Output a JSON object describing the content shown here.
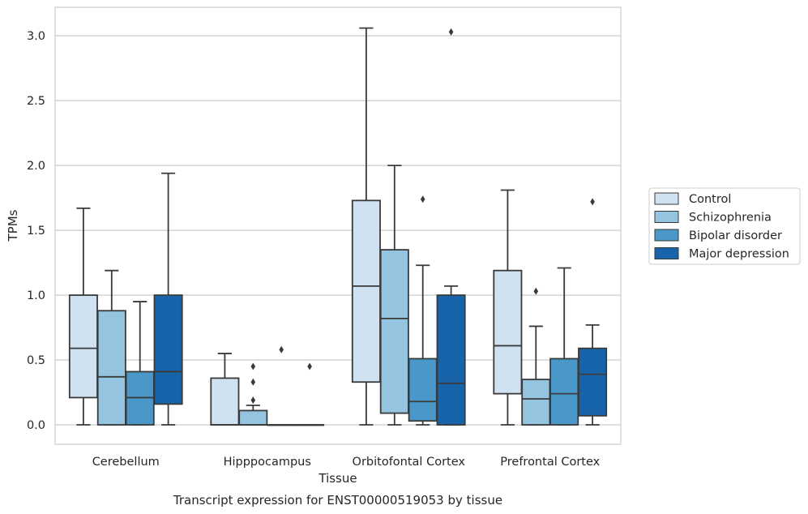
{
  "chart_data": {
    "type": "box",
    "title": "",
    "xlabel": "Tissue",
    "ylabel": "TPMs",
    "caption": "Transcript expression for ENST00000519053 by tissue",
    "ylim": [
      -0.15,
      3.22
    ],
    "yticks": [
      0.0,
      0.5,
      1.0,
      1.5,
      2.0,
      2.5,
      3.0
    ],
    "ytick_labels": [
      "0.0",
      "0.5",
      "1.0",
      "1.5",
      "2.0",
      "2.5",
      "3.0"
    ],
    "grid": "horizontal",
    "legend_position": "right",
    "categories": [
      "Cerebellum",
      "Hipppocampus",
      "Orbitofontal Cortex",
      "Prefrontal Cortex"
    ],
    "series": [
      {
        "name": "Control",
        "color": "#d0e1f2",
        "boxes": [
          {
            "min": 0.0,
            "q1": 0.21,
            "median": 0.59,
            "q3": 1.0,
            "max": 1.67,
            "outliers": []
          },
          {
            "min": 0.0,
            "q1": 0.0,
            "median": 0.0,
            "q3": 0.36,
            "max": 0.55,
            "outliers": []
          },
          {
            "min": 0.0,
            "q1": 0.33,
            "median": 1.07,
            "q3": 1.73,
            "max": 3.06,
            "outliers": []
          },
          {
            "min": 0.0,
            "q1": 0.24,
            "median": 0.61,
            "q3": 1.19,
            "max": 1.81,
            "outliers": []
          }
        ]
      },
      {
        "name": "Schizophrenia",
        "color": "#94c4df",
        "boxes": [
          {
            "min": 0.0,
            "q1": 0.0,
            "median": 0.37,
            "q3": 0.88,
            "max": 1.19,
            "outliers": []
          },
          {
            "min": 0.0,
            "q1": 0.0,
            "median": 0.0,
            "q3": 0.11,
            "max": 0.15,
            "outliers": [
              0.45,
              0.33,
              0.19
            ]
          },
          {
            "min": 0.0,
            "q1": 0.09,
            "median": 0.82,
            "q3": 1.35,
            "max": 2.0,
            "outliers": []
          },
          {
            "min": 0.0,
            "q1": 0.0,
            "median": 0.2,
            "q3": 0.35,
            "max": 0.76,
            "outliers": [
              1.03
            ]
          }
        ]
      },
      {
        "name": "Bipolar disorder",
        "color": "#4a98c9",
        "boxes": [
          {
            "min": 0.0,
            "q1": 0.0,
            "median": 0.21,
            "q3": 0.41,
            "max": 0.95,
            "outliers": []
          },
          {
            "min": 0.0,
            "q1": 0.0,
            "median": 0.0,
            "q3": 0.0,
            "max": 0.0,
            "outliers": [
              0.58
            ]
          },
          {
            "min": 0.0,
            "q1": 0.03,
            "median": 0.18,
            "q3": 0.51,
            "max": 1.23,
            "outliers": [
              1.74
            ]
          },
          {
            "min": 0.0,
            "q1": 0.0,
            "median": 0.24,
            "q3": 0.51,
            "max": 1.21,
            "outliers": []
          }
        ]
      },
      {
        "name": "Major depression",
        "color": "#1764ab",
        "boxes": [
          {
            "min": 0.0,
            "q1": 0.16,
            "median": 0.41,
            "q3": 1.0,
            "max": 1.94,
            "outliers": []
          },
          {
            "min": 0.0,
            "q1": 0.0,
            "median": 0.0,
            "q3": 0.0,
            "max": 0.0,
            "outliers": [
              0.45
            ]
          },
          {
            "min": 0.0,
            "q1": 0.0,
            "median": 0.32,
            "q3": 1.0,
            "max": 1.07,
            "outliers": [
              3.03
            ]
          },
          {
            "min": 0.0,
            "q1": 0.07,
            "median": 0.39,
            "q3": 0.59,
            "max": 0.77,
            "outliers": [
              1.72
            ]
          }
        ]
      }
    ]
  }
}
